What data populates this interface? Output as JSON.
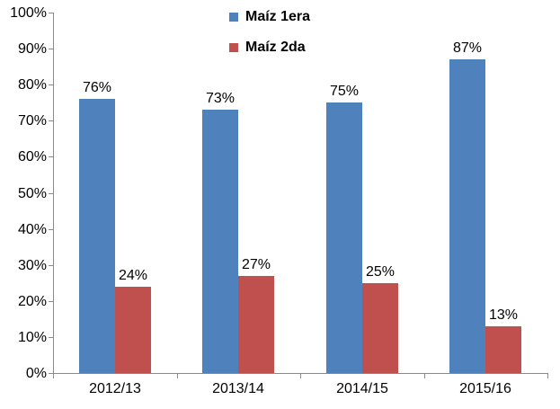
{
  "chart_data": {
    "type": "bar",
    "title": "",
    "xlabel": "",
    "ylabel": "",
    "categories": [
      "2012/13",
      "2013/14",
      "2014/15",
      "2015/16"
    ],
    "series": [
      {
        "name": "Maíz 1era",
        "color": "#4F81BD",
        "values": [
          76,
          73,
          75,
          87
        ],
        "labels": [
          "76%",
          "73%",
          "75%",
          "87%"
        ]
      },
      {
        "name": "Maíz 2da",
        "color": "#C0504D",
        "values": [
          24,
          27,
          25,
          13
        ],
        "labels": [
          "24%",
          "27%",
          "25%",
          "13%"
        ]
      }
    ],
    "ylim": [
      0,
      100
    ],
    "ytick_step": 10,
    "ytick_labels": [
      "0%",
      "10%",
      "20%",
      "30%",
      "40%",
      "50%",
      "60%",
      "70%",
      "80%",
      "90%",
      "100%"
    ],
    "grid": false,
    "data_labels": true,
    "legend_position": "top-center"
  },
  "colors": {
    "series1": "#4F81BD",
    "series2": "#C0504D",
    "axis": "#8A8A8A",
    "text": "#000000",
    "background": "#FFFFFF"
  }
}
